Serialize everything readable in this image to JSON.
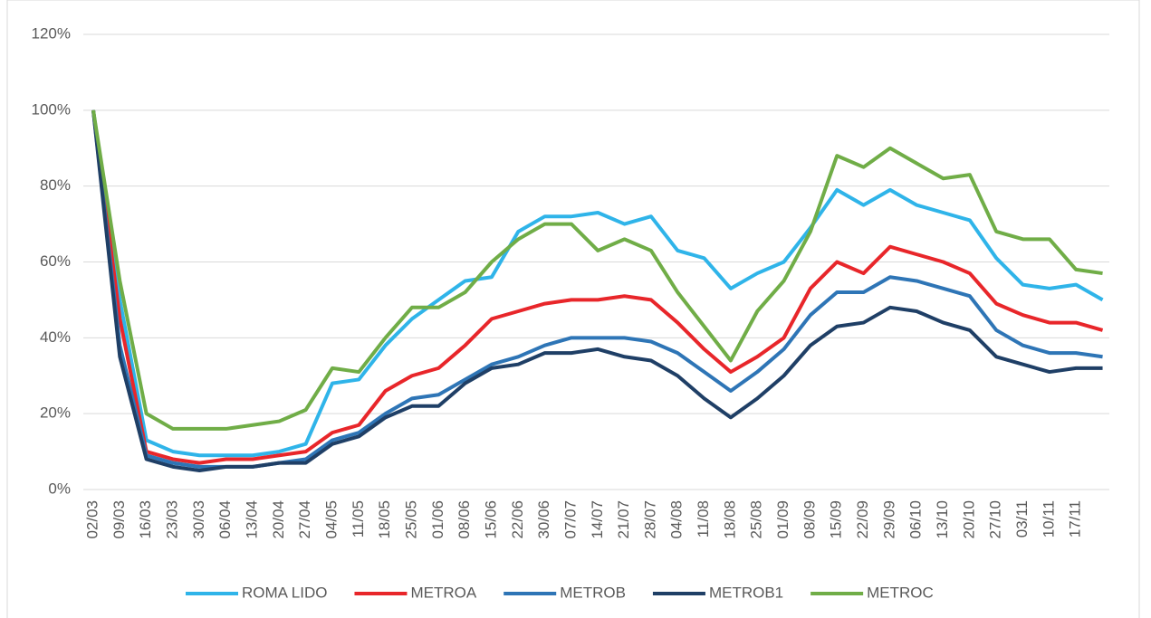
{
  "chart_data": {
    "type": "line",
    "categories": [
      "02/03",
      "09/03",
      "16/03",
      "23/03",
      "30/03",
      "06/04",
      "13/04",
      "20/04",
      "27/04",
      "04/05",
      "11/05",
      "18/05",
      "25/05",
      "01/06",
      "08/06",
      "15/06",
      "22/06",
      "30/06",
      "07/07",
      "14/07",
      "21/07",
      "28/07",
      "04/08",
      "11/08",
      "18/08",
      "25/08",
      "01/09",
      "08/09",
      "15/09",
      "22/09",
      "29/09",
      "06/10",
      "13/10",
      "20/10",
      "27/10",
      "03/11",
      "10/11",
      "17/11",
      null
    ],
    "series": [
      {
        "name": "ROMA LIDO",
        "color": "#2fb4e9",
        "values": [
          100,
          50,
          13,
          10,
          9,
          9,
          9,
          10,
          12,
          28,
          29,
          38,
          45,
          50,
          55,
          56,
          68,
          72,
          72,
          73,
          70,
          72,
          63,
          61,
          53,
          57,
          60,
          69,
          79,
          75,
          79,
          75,
          73,
          71,
          61,
          54,
          53,
          54,
          50
        ]
      },
      {
        "name": "METROA",
        "color": "#e8262a",
        "values": [
          100,
          45,
          10,
          8,
          7,
          8,
          8,
          9,
          10,
          15,
          17,
          26,
          30,
          32,
          38,
          45,
          47,
          49,
          50,
          50,
          51,
          50,
          44,
          37,
          31,
          35,
          40,
          53,
          60,
          57,
          64,
          62,
          60,
          57,
          49,
          46,
          44,
          44,
          42
        ]
      },
      {
        "name": "METROB",
        "color": "#2e75b6",
        "values": [
          100,
          38,
          9,
          7,
          6,
          6,
          6,
          7,
          8,
          13,
          15,
          20,
          24,
          25,
          29,
          33,
          35,
          38,
          40,
          40,
          40,
          39,
          36,
          31,
          26,
          31,
          37,
          46,
          52,
          52,
          56,
          55,
          53,
          51,
          42,
          38,
          36,
          36,
          35
        ]
      },
      {
        "name": "METROB1",
        "color": "#1f3f66",
        "values": [
          100,
          35,
          8,
          6,
          5,
          6,
          6,
          7,
          7,
          12,
          14,
          19,
          22,
          22,
          28,
          32,
          33,
          36,
          36,
          37,
          35,
          34,
          30,
          24,
          19,
          24,
          30,
          38,
          43,
          44,
          48,
          47,
          44,
          42,
          35,
          33,
          31,
          32,
          32
        ]
      },
      {
        "name": "METROC",
        "color": "#70ad47",
        "values": [
          100,
          55,
          20,
          16,
          16,
          16,
          17,
          18,
          21,
          32,
          31,
          40,
          48,
          48,
          52,
          60,
          66,
          70,
          70,
          63,
          66,
          63,
          52,
          43,
          34,
          47,
          55,
          68,
          88,
          85,
          90,
          86,
          82,
          83,
          68,
          66,
          66,
          58,
          57
        ]
      }
    ],
    "ylim": [
      0,
      120
    ],
    "yticks": [
      {
        "value": 0,
        "label": "0%"
      },
      {
        "value": 20,
        "label": "20%"
      },
      {
        "value": 40,
        "label": "40%"
      },
      {
        "value": 60,
        "label": "60%"
      },
      {
        "value": 80,
        "label": "80%"
      },
      {
        "value": 100,
        "label": "100%"
      },
      {
        "value": 120,
        "label": "120%"
      }
    ],
    "grid": true,
    "legend": "bottom"
  }
}
